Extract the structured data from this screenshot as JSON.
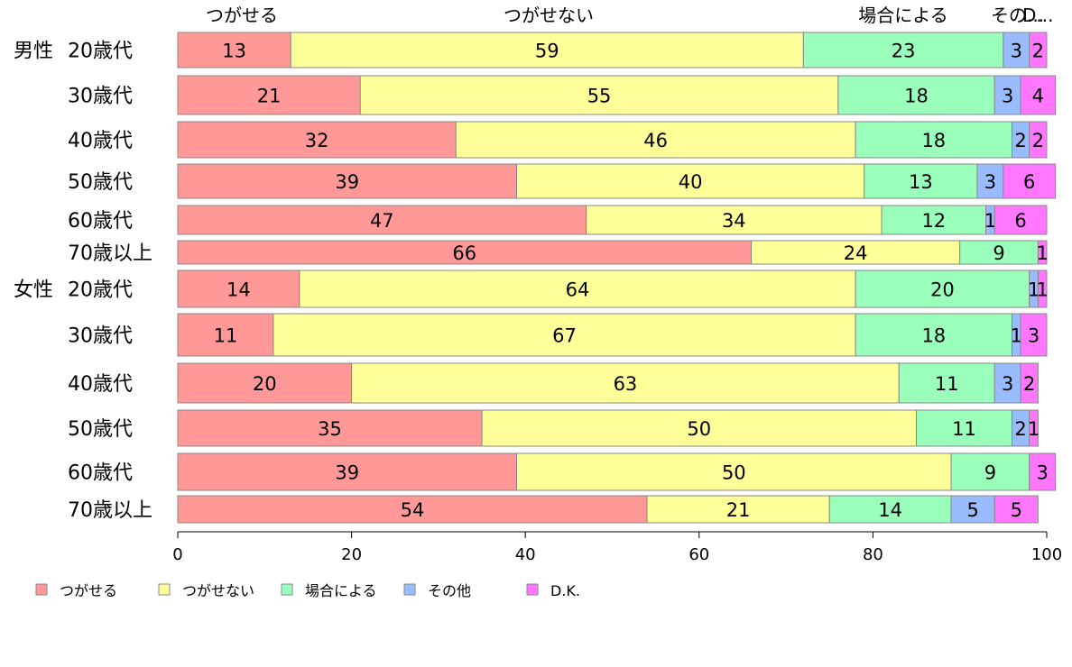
{
  "chart_data": {
    "type": "bar",
    "orientation": "horizontal",
    "stacked": true,
    "xlim": [
      0,
      100
    ],
    "x_ticks": [
      0,
      20,
      40,
      60,
      80,
      100
    ],
    "grid": false,
    "legend_position": "bottom-left",
    "series_labels_top": [
      "つがせる",
      "つがせない",
      "場合による",
      "その...",
      "D..."
    ],
    "series": [
      {
        "name": "つがせる",
        "color": "#ff9896",
        "values": [
          13,
          21,
          32,
          39,
          47,
          66,
          14,
          11,
          20,
          35,
          39,
          54
        ]
      },
      {
        "name": "つがせない",
        "color": "#ffff99",
        "values": [
          59,
          55,
          46,
          40,
          34,
          24,
          64,
          67,
          63,
          50,
          50,
          21
        ]
      },
      {
        "name": "場合による",
        "color": "#99ffbb",
        "values": [
          23,
          18,
          18,
          13,
          12,
          9,
          20,
          18,
          11,
          11,
          9,
          14
        ]
      },
      {
        "name": "その他",
        "color": "#99bbff",
        "values": [
          3,
          3,
          2,
          3,
          1,
          0,
          1,
          1,
          3,
          2,
          0,
          5
        ]
      },
      {
        "name": "D.K.",
        "color": "#ff77ff",
        "values": [
          2,
          4,
          2,
          6,
          6,
          1,
          1,
          3,
          2,
          1,
          3,
          5
        ]
      }
    ],
    "rows": [
      {
        "group": "男性",
        "label": "20歳代"
      },
      {
        "group": "",
        "label": "30歳代"
      },
      {
        "group": "",
        "label": "40歳代"
      },
      {
        "group": "",
        "label": "50歳代"
      },
      {
        "group": "",
        "label": "60歳代"
      },
      {
        "group": "",
        "label": "70歳以上"
      },
      {
        "group": "女性",
        "label": "20歳代"
      },
      {
        "group": "",
        "label": "30歳代"
      },
      {
        "group": "",
        "label": "40歳代"
      },
      {
        "group": "",
        "label": "50歳代"
      },
      {
        "group": "",
        "label": "60歳代"
      },
      {
        "group": "",
        "label": "70歳以上"
      }
    ],
    "data_labels": [
      [
        "13",
        "59",
        "23",
        "3",
        "2"
      ],
      [
        "21",
        "55",
        "18",
        "3",
        "4"
      ],
      [
        "32",
        "46",
        "18",
        "2",
        "2"
      ],
      [
        "39",
        "40",
        "13",
        "3",
        "6"
      ],
      [
        "47",
        "34",
        "12",
        "1",
        "6"
      ],
      [
        "66",
        "24",
        "9",
        "",
        "1"
      ],
      [
        "14",
        "64",
        "20",
        "1",
        "1"
      ],
      [
        "11",
        "67",
        "18",
        "1",
        "3"
      ],
      [
        "20",
        "63",
        "11",
        "3",
        "2"
      ],
      [
        "35",
        "50",
        "11",
        "2",
        "1"
      ],
      [
        "39",
        "50",
        "9",
        "",
        "3"
      ],
      [
        "54",
        "21",
        "14",
        "5",
        "5"
      ]
    ]
  }
}
